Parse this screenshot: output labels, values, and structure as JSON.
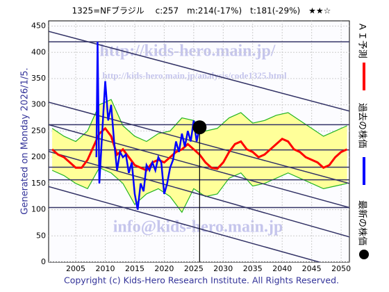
{
  "chart_data": {
    "type": "line",
    "title": "1325=NFブラジル　 c:257　m:214(-17%)　t:181(-29%)　★★☆",
    "side_note": "Generated on Monday 2026/1/5.",
    "footer": "Copyright (c) Kids-Hero Research Institute. All Rights Reserved.",
    "watermarks": [
      "http://kids-hero.main.jp/",
      "http://kids-hero.main.jp/analysis/code1325.html",
      "info@kids-hero.main.jp"
    ],
    "xlim": [
      2000.4,
      2051.4
    ],
    "xticks": [
      2005,
      2010,
      2015,
      2020,
      2025,
      2030,
      2035,
      2040,
      2045,
      2050
    ],
    "ylim": [
      0,
      460
    ],
    "yticks": [
      0,
      50,
      100,
      150,
      200,
      250,
      300,
      350,
      400,
      450
    ],
    "band": {
      "color": "#22b422",
      "fill": "#ffff99",
      "x": [
        2001,
        2003,
        2005,
        2007,
        2009,
        2011,
        2013,
        2015,
        2017,
        2019,
        2021,
        2023,
        2025,
        2027,
        2029,
        2031,
        2033,
        2035,
        2037,
        2039,
        2041,
        2043,
        2045,
        2047,
        2049,
        2051
      ],
      "upper": [
        255,
        240,
        230,
        250,
        300,
        310,
        260,
        240,
        230,
        245,
        250,
        275,
        270,
        250,
        255,
        275,
        285,
        265,
        270,
        280,
        285,
        270,
        255,
        240,
        250,
        260
      ],
      "lower": [
        175,
        165,
        150,
        140,
        180,
        170,
        150,
        110,
        130,
        140,
        125,
        95,
        140,
        125,
        130,
        160,
        170,
        145,
        150,
        160,
        170,
        160,
        150,
        140,
        145,
        150
      ]
    },
    "series": [
      {
        "name": "ＡＩ予測",
        "color": "#ff0000",
        "x": [
          2001,
          2002,
          2003,
          2004,
          2005,
          2006,
          2007,
          2008,
          2009,
          2010,
          2011,
          2012,
          2013,
          2014,
          2015,
          2016,
          2017,
          2018,
          2019,
          2020,
          2021,
          2022,
          2023,
          2024,
          2025,
          2026,
          2027,
          2028,
          2029,
          2030,
          2031,
          2032,
          2033,
          2034,
          2035,
          2036,
          2037,
          2038,
          2039,
          2040,
          2041,
          2042,
          2043,
          2044,
          2045,
          2046,
          2047,
          2048,
          2049,
          2050,
          2051
        ],
        "values": [
          215,
          205,
          200,
          190,
          180,
          180,
          195,
          220,
          245,
          255,
          240,
          205,
          215,
          200,
          185,
          180,
          175,
          190,
          195,
          190,
          200,
          210,
          215,
          225,
          215,
          205,
          190,
          180,
          178,
          190,
          210,
          225,
          230,
          215,
          210,
          200,
          205,
          215,
          225,
          235,
          230,
          215,
          210,
          200,
          195,
          190,
          180,
          185,
          200,
          210,
          215
        ]
      },
      {
        "name": "過去の株価",
        "color": "#0000ff",
        "x": [
          2008.5,
          2008.7,
          2009.0,
          2009.5,
          2010.0,
          2010.5,
          2011.0,
          2011.5,
          2012.0,
          2012.5,
          2013.0,
          2013.5,
          2014.0,
          2014.5,
          2015.0,
          2015.5,
          2016.0,
          2016.5,
          2017.0,
          2017.5,
          2018.0,
          2018.5,
          2019.0,
          2019.5,
          2020.0,
          2020.5,
          2021.0,
          2021.5,
          2022.0,
          2022.5,
          2023.0,
          2023.5,
          2024.0,
          2024.5,
          2025.0,
          2025.5,
          2026.0
        ],
        "values": [
          200,
          420,
          150,
          250,
          345,
          270,
          300,
          230,
          175,
          210,
          200,
          205,
          170,
          190,
          130,
          100,
          150,
          135,
          185,
          175,
          190,
          175,
          200,
          190,
          130,
          150,
          180,
          195,
          230,
          210,
          245,
          220,
          250,
          230,
          270,
          230,
          257
        ]
      }
    ],
    "latest": {
      "name": "最新の株価",
      "color": "#000000",
      "x": 2026,
      "value": 257
    },
    "hlines": [
      420,
      262,
      214,
      181,
      157,
      104
    ],
    "trend_lines": [
      {
        "x": [
          2000.4,
          2051.4
        ],
        "values": [
          440,
          288
        ]
      },
      {
        "x": [
          2000.4,
          2051.4
        ],
        "values": [
          305,
          150
        ]
      },
      {
        "x": [
          2000.4,
          2051.4
        ],
        "values": [
          262,
          104
        ]
      },
      {
        "x": [
          2000.4,
          2051.4
        ],
        "values": [
          211,
          48
        ]
      },
      {
        "x": [
          2000.4,
          2051.4
        ],
        "values": [
          144,
          -16
        ]
      }
    ]
  }
}
